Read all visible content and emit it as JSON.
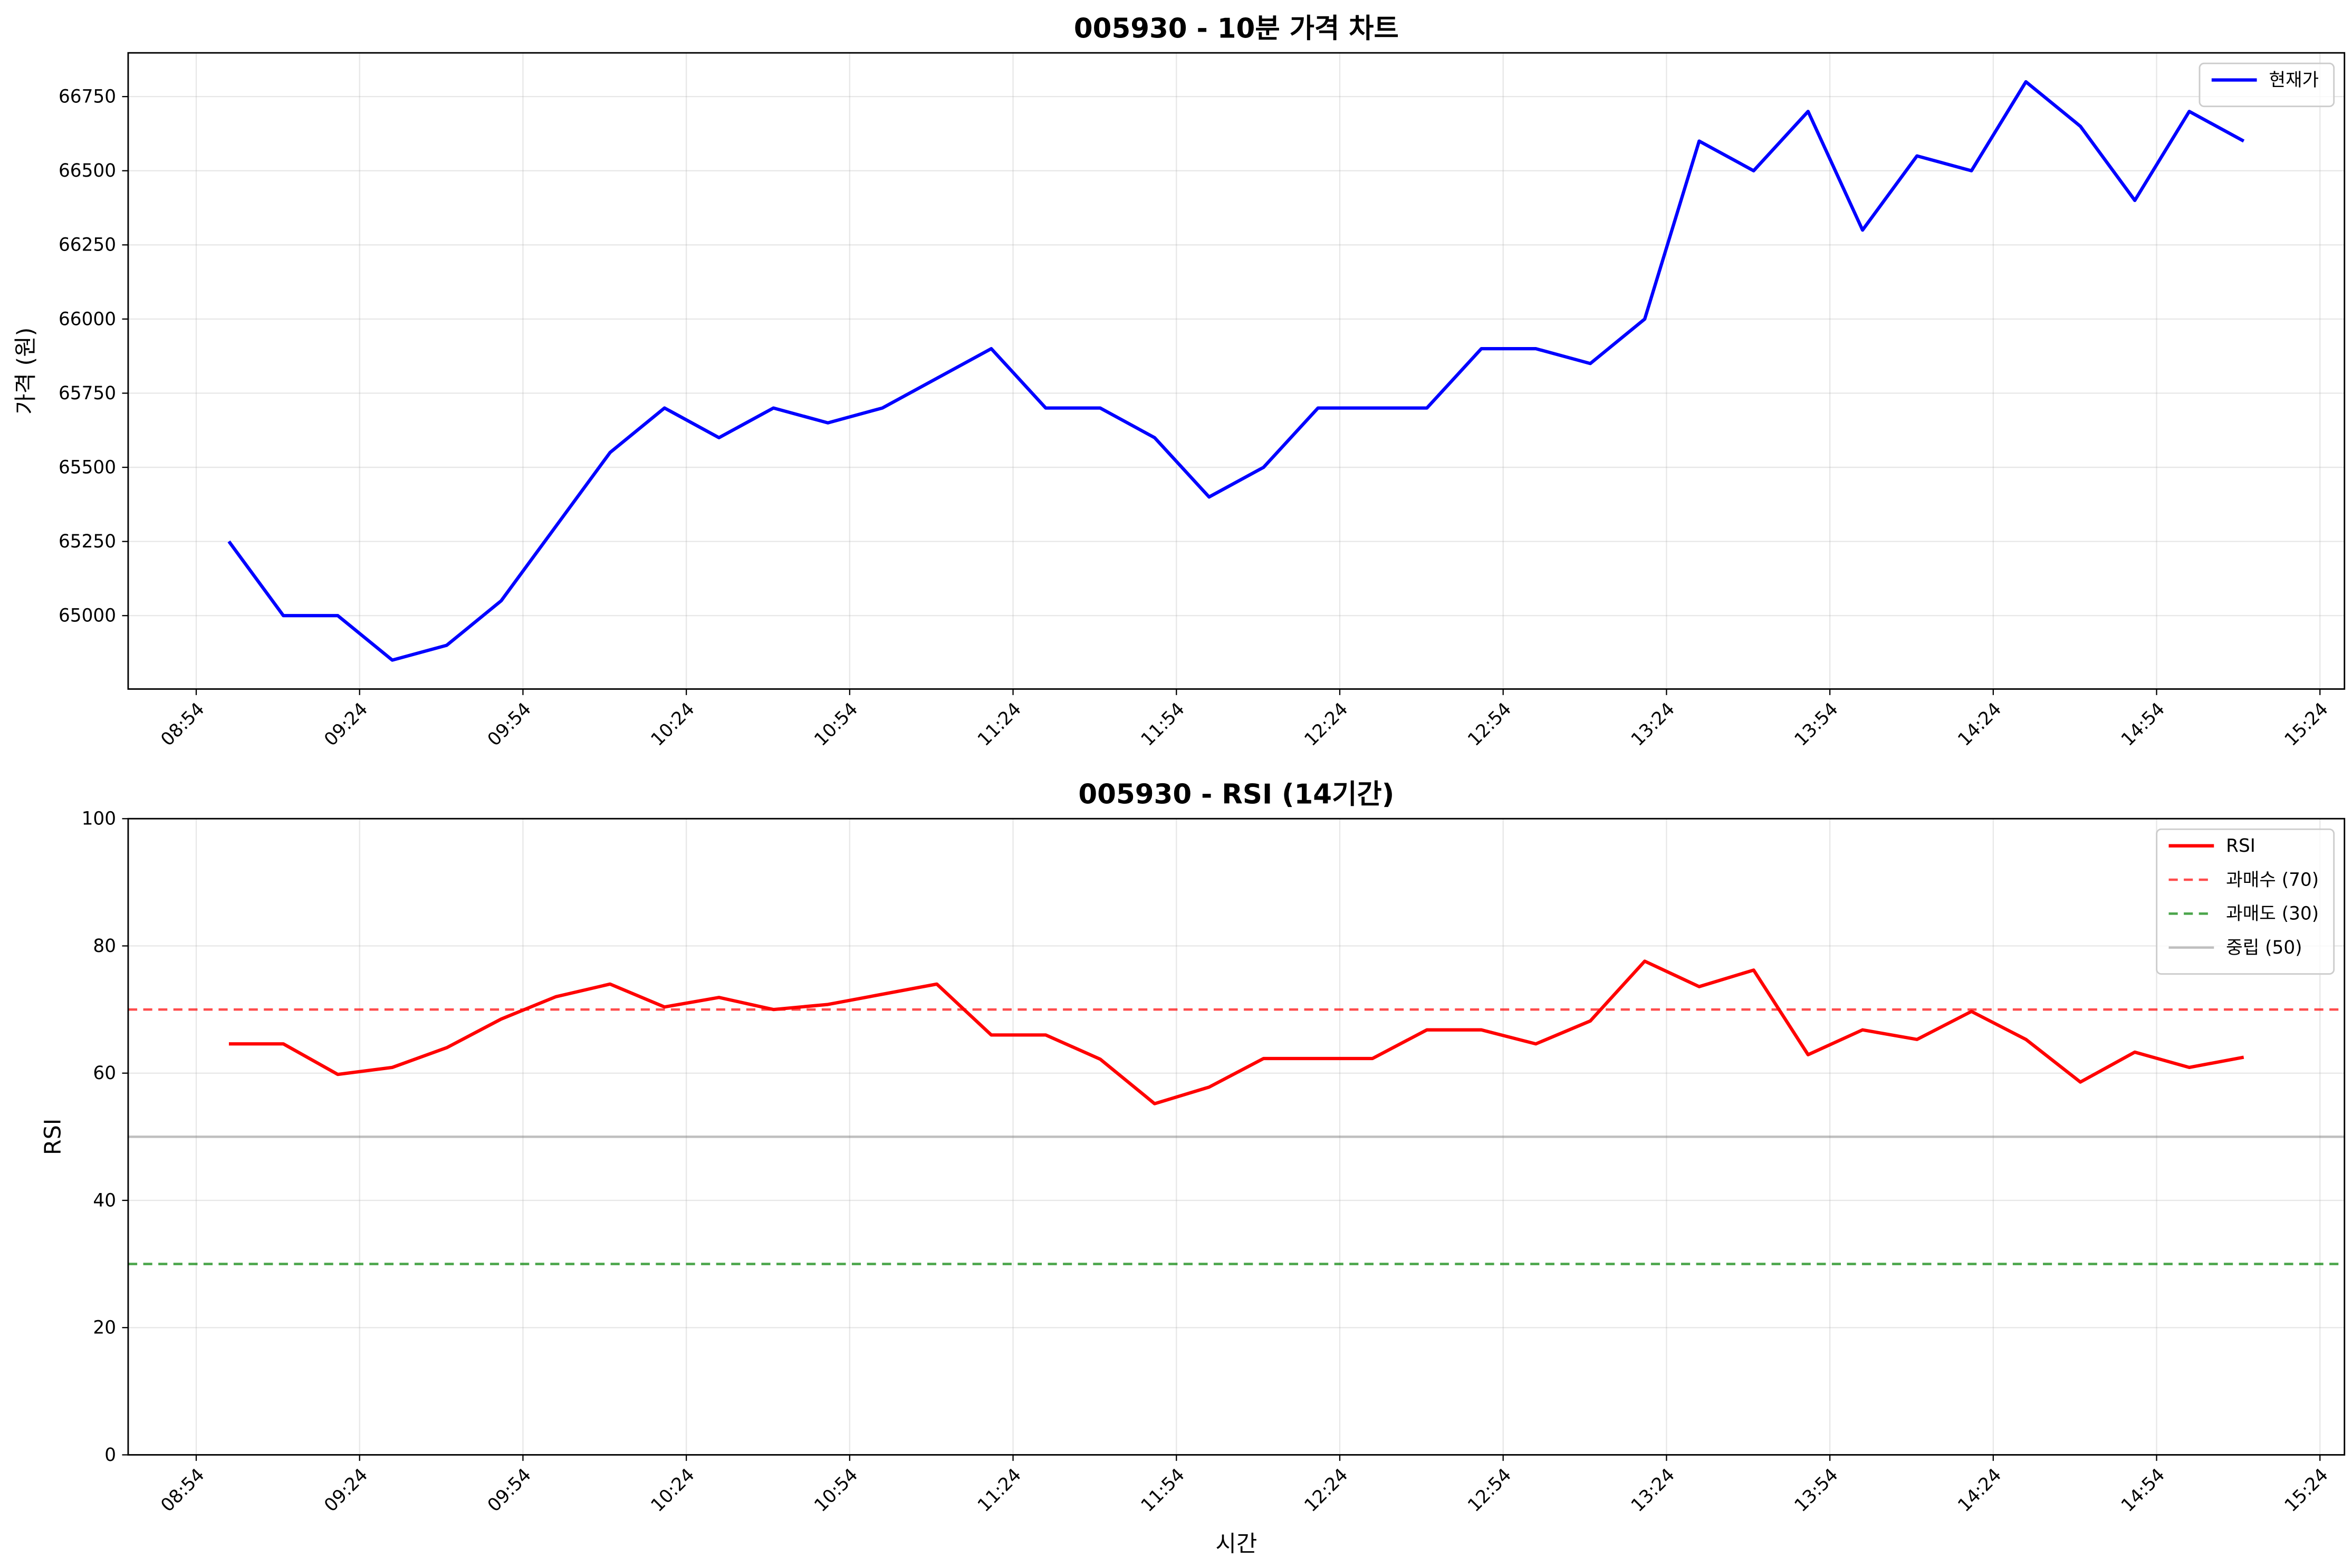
{
  "chart_data": [
    {
      "type": "line",
      "title": "005930 - 10분 가격 차트",
      "ylabel": "가격 (원)",
      "x": [
        "09:00",
        "09:10",
        "09:20",
        "09:30",
        "09:40",
        "09:50",
        "10:00",
        "10:10",
        "10:20",
        "10:30",
        "10:40",
        "10:50",
        "11:00",
        "11:10",
        "11:20",
        "11:30",
        "11:40",
        "11:50",
        "12:00",
        "12:10",
        "12:20",
        "12:30",
        "12:40",
        "12:50",
        "13:00",
        "13:10",
        "13:20",
        "13:30",
        "13:40",
        "13:50",
        "14:00",
        "14:10",
        "14:20",
        "14:30",
        "14:40",
        "14:50",
        "15:00",
        "15:10"
      ],
      "xlim": [
        "08:41:30",
        "15:28:30"
      ],
      "xticks": [
        "08:54",
        "09:24",
        "09:54",
        "10:24",
        "10:54",
        "11:24",
        "11:54",
        "12:24",
        "12:54",
        "13:24",
        "13:54",
        "14:24",
        "14:54",
        "15:24"
      ],
      "ylim": [
        64752.5,
        66897.5
      ],
      "yticks": [
        65000,
        65250,
        65500,
        65750,
        66000,
        66250,
        66500,
        66750
      ],
      "grid": true,
      "legend": "upper right",
      "series": [
        {
          "name": "현재가",
          "color": "#0000ff",
          "values": [
            65250,
            65000,
            65000,
            64850,
            64900,
            65050,
            65300,
            65550,
            65700,
            65600,
            65700,
            65650,
            65700,
            65800,
            65900,
            65700,
            65700,
            65600,
            65400,
            65500,
            65700,
            65700,
            65700,
            65900,
            65900,
            65850,
            66000,
            66600,
            66500,
            66700,
            66300,
            66550,
            66500,
            66800,
            66650,
            66400,
            66700,
            66600
          ]
        }
      ],
      "reference_lines": []
    },
    {
      "type": "line",
      "title": "005930 - RSI (14기간)",
      "ylabel": "RSI",
      "xlabel": "시간",
      "x": [
        "09:00",
        "09:10",
        "09:20",
        "09:30",
        "09:40",
        "09:50",
        "10:00",
        "10:10",
        "10:20",
        "10:30",
        "10:40",
        "10:50",
        "11:00",
        "11:10",
        "11:20",
        "11:30",
        "11:40",
        "11:50",
        "12:00",
        "12:10",
        "12:20",
        "12:30",
        "12:40",
        "12:50",
        "13:00",
        "13:10",
        "13:20",
        "13:30",
        "13:40",
        "13:50",
        "14:00",
        "14:10",
        "14:20",
        "14:30",
        "14:40",
        "14:50",
        "15:00",
        "15:10"
      ],
      "xlim": [
        "08:41:30",
        "15:28:30"
      ],
      "xticks": [
        "08:54",
        "09:24",
        "09:54",
        "10:24",
        "10:54",
        "11:24",
        "11:54",
        "12:24",
        "12:54",
        "13:24",
        "13:54",
        "14:24",
        "14:54",
        "15:24"
      ],
      "ylim": [
        0,
        100
      ],
      "yticks": [
        0,
        20,
        40,
        60,
        80,
        100
      ],
      "grid": true,
      "legend": "upper right",
      "series": [
        {
          "name": "RSI",
          "color": "#ff0000",
          "values": [
            64.6,
            64.6,
            59.8,
            60.9,
            64,
            68.5,
            72,
            74,
            70.4,
            71.9,
            70,
            70.8,
            72.4,
            74,
            66,
            66,
            62.2,
            55.2,
            57.8,
            62.3,
            62.3,
            62.3,
            66.8,
            66.8,
            64.6,
            68.2,
            77.6,
            73.6,
            76.2,
            62.9,
            66.8,
            65.3,
            69.7,
            65.3,
            58.6,
            63.3,
            60.9,
            62.5
          ]
        }
      ],
      "reference_lines": [
        {
          "name": "과매수 (70)",
          "value": 70,
          "color": "#ff0000",
          "alpha": 0.7,
          "style": "dashed"
        },
        {
          "name": "과매도 (30)",
          "value": 30,
          "color": "#008000",
          "alpha": 0.7,
          "style": "dashed"
        },
        {
          "name": "중립 (50)",
          "value": 50,
          "color": "#808080",
          "alpha": 0.5,
          "style": "solid"
        }
      ]
    }
  ]
}
